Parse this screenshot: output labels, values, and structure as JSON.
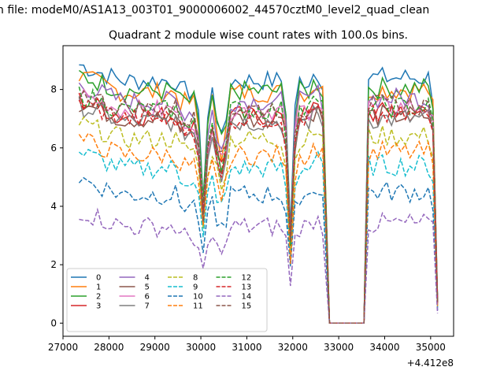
{
  "suptitle": "n file: modeM0/AS1A13_003T01_9000006002_44570cztM0_level2_quad_clean",
  "chart_data": {
    "type": "line",
    "title": "Quadrant 2 module wise count rates with 100.0s bins.",
    "xlabel": "",
    "ylabel": "",
    "x_offset_label": "+4.412e8",
    "xlim": [
      27000,
      35500
    ],
    "ylim": [
      -0.45,
      9.5
    ],
    "xticks": [
      27000,
      28000,
      29000,
      30000,
      31000,
      32000,
      33000,
      34000,
      35000
    ],
    "xtick_labels": [
      "27000",
      "28000",
      "29000",
      "30000",
      "31000",
      "32000",
      "33000",
      "34000",
      "35000"
    ],
    "yticks": [
      0,
      2,
      4,
      6,
      8
    ],
    "ytick_labels": [
      "0",
      "2",
      "4",
      "6",
      "8"
    ],
    "legend_position": "lower-left",
    "legend_columns": 4,
    "series": [
      {
        "name": "0",
        "color": "#1f77b4",
        "dash": "solid",
        "base": 8.3
      },
      {
        "name": "1",
        "color": "#ff7f0e",
        "dash": "solid",
        "base": 7.9
      },
      {
        "name": "2",
        "color": "#2ca02c",
        "dash": "solid",
        "base": 7.95
      },
      {
        "name": "3",
        "color": "#d62728",
        "dash": "solid",
        "base": 7.1
      },
      {
        "name": "4",
        "color": "#9467bd",
        "dash": "solid",
        "base": 7.6
      },
      {
        "name": "5",
        "color": "#8c564b",
        "dash": "solid",
        "base": 7.0
      },
      {
        "name": "6",
        "color": "#e377c2",
        "dash": "solid",
        "base": 7.3
      },
      {
        "name": "7",
        "color": "#7f7f7f",
        "dash": "solid",
        "base": 6.9
      },
      {
        "name": "8",
        "color": "#bcbd22",
        "dash": "dashed",
        "base": 6.3
      },
      {
        "name": "9",
        "color": "#17becf",
        "dash": "dashed",
        "base": 5.3
      },
      {
        "name": "10",
        "color": "#1f77b4",
        "dash": "dashed",
        "base": 4.4
      },
      {
        "name": "11",
        "color": "#ff7f0e",
        "dash": "dashed",
        "base": 5.75
      },
      {
        "name": "12",
        "color": "#2ca02c",
        "dash": "dashed",
        "base": 7.3
      },
      {
        "name": "13",
        "color": "#d62728",
        "dash": "dashed",
        "base": 7.0
      },
      {
        "name": "14",
        "color": "#9467bd",
        "dash": "dashed",
        "base": 3.3
      },
      {
        "name": "15",
        "color": "#8c564b",
        "dash": "dashed",
        "base": 7.35
      }
    ],
    "segment1": {
      "x_start": 27350,
      "x_end": 32800,
      "step": 100,
      "dips": [
        {
          "x": 30050,
          "depth": 0.5
        },
        {
          "x": 30450,
          "depth": 0.75
        },
        {
          "x": 31950,
          "depth": 0.35
        }
      ]
    },
    "gap": {
      "x_start": 32800,
      "x_end": 33550,
      "value": 0
    },
    "segment2": {
      "x_start": 33550,
      "x_end": 35150,
      "step": 100
    }
  }
}
